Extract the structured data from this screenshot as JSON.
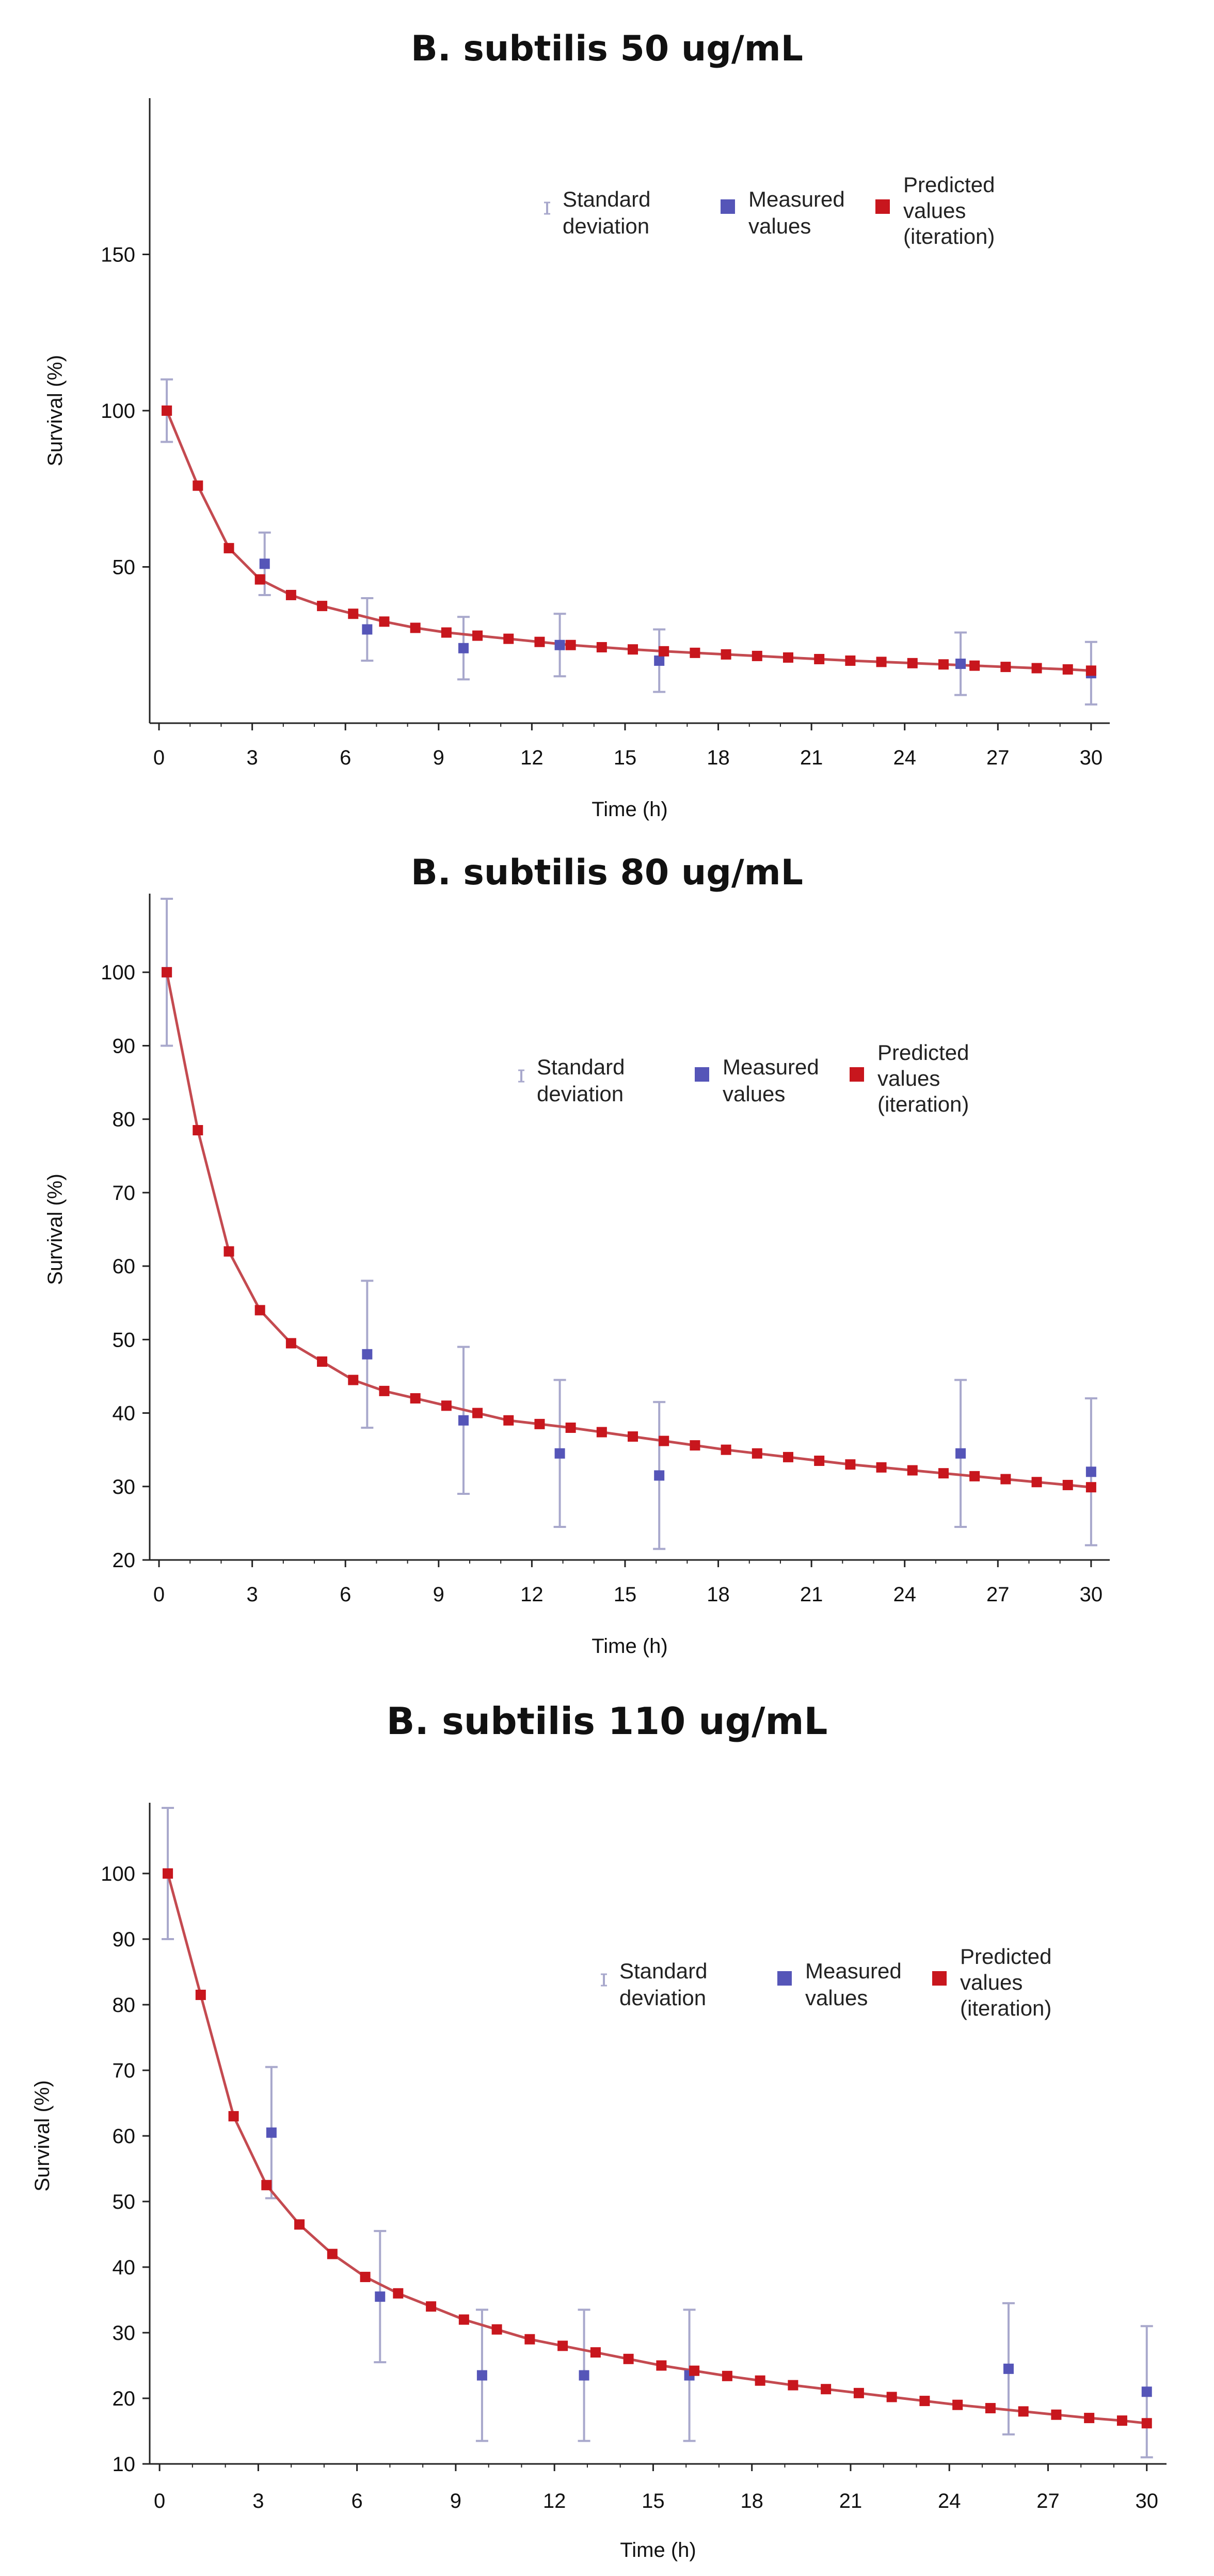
{
  "colors": {
    "measured": "#5555b8",
    "predicted": "#c8161d",
    "curve": "#c44a50",
    "errorbar": "#a8a8cc",
    "axis": "#222222"
  },
  "chart_data": [
    {
      "type": "scatter",
      "title": "B. subtilis 50 ug/mL",
      "xlabel": "Time (h)",
      "ylabel": "Survival (%)",
      "xlim": [
        -0.3,
        30.6
      ],
      "ylim": [
        0,
        200
      ],
      "xticks": [
        0,
        3,
        6,
        9,
        12,
        15,
        18,
        21,
        24,
        27,
        30
      ],
      "yticks": [
        50,
        100,
        150
      ],
      "legend": [
        "Standard deviation",
        "Measured values",
        "Predicted values (iteration)"
      ],
      "measured": [
        {
          "x": 0.25,
          "y": 100,
          "sd": 10
        },
        {
          "x": 3.4,
          "y": 51,
          "sd": 10
        },
        {
          "x": 6.7,
          "y": 30,
          "sd": 10
        },
        {
          "x": 9.8,
          "y": 24,
          "sd": 10
        },
        {
          "x": 12.9,
          "y": 25,
          "sd": 10
        },
        {
          "x": 16.1,
          "y": 20,
          "sd": 10
        },
        {
          "x": 25.8,
          "y": 19,
          "sd": 10
        },
        {
          "x": 30.0,
          "y": 16,
          "sd": 10
        }
      ],
      "predicted": {
        "x": [
          0.25,
          1.25,
          2.25,
          3.25,
          4.25,
          5.25,
          6.25,
          7.25,
          8.25,
          9.25,
          10.25,
          11.25,
          12.25,
          13.25,
          14.25,
          15.25,
          16.25,
          17.25,
          18.25,
          19.25,
          20.25,
          21.25,
          22.25,
          23.25,
          24.25,
          25.25,
          26.25,
          27.25,
          28.25,
          29.25,
          30.0
        ],
        "y": [
          100,
          76,
          56,
          46,
          41,
          37.5,
          35,
          32.5,
          30.5,
          29,
          28,
          27,
          26,
          25,
          24.3,
          23.6,
          23,
          22.5,
          22,
          21.5,
          21,
          20.5,
          20,
          19.6,
          19.2,
          18.8,
          18.4,
          18,
          17.6,
          17.2,
          16.8
        ]
      }
    },
    {
      "type": "scatter",
      "title": "B. subtilis 80 ug/mL",
      "xlabel": "Time (h)",
      "ylabel": "Survival (%)",
      "xlim": [
        -0.3,
        30.6
      ],
      "ylim": [
        20,
        110
      ],
      "xticks": [
        0,
        3,
        6,
        9,
        12,
        15,
        18,
        21,
        24,
        27,
        30
      ],
      "yticks": [
        20,
        30,
        40,
        50,
        60,
        70,
        80,
        90,
        100
      ],
      "legend": [
        "Standard deviation",
        "Measured values",
        "Predicted values (iteration)"
      ],
      "measured": [
        {
          "x": 0.25,
          "y": 100,
          "sd": 10
        },
        {
          "x": 6.7,
          "y": 48,
          "sd": 10
        },
        {
          "x": 9.8,
          "y": 39,
          "sd": 10
        },
        {
          "x": 12.9,
          "y": 34.5,
          "sd": 10
        },
        {
          "x": 16.1,
          "y": 31.5,
          "sd": 10
        },
        {
          "x": 25.8,
          "y": 34.5,
          "sd": 10
        },
        {
          "x": 30.0,
          "y": 32,
          "sd": 10
        }
      ],
      "predicted": {
        "x": [
          0.25,
          1.25,
          2.25,
          3.25,
          4.25,
          5.25,
          6.25,
          7.25,
          8.25,
          9.25,
          10.25,
          11.25,
          12.25,
          13.25,
          14.25,
          15.25,
          16.25,
          17.25,
          18.25,
          19.25,
          20.25,
          21.25,
          22.25,
          23.25,
          24.25,
          25.25,
          26.25,
          27.25,
          28.25,
          29.25,
          30.0
        ],
        "y": [
          100,
          78.5,
          62,
          54,
          49.5,
          47,
          44.5,
          43,
          42,
          41,
          40,
          39,
          38.5,
          38,
          37.4,
          36.8,
          36.2,
          35.6,
          35,
          34.5,
          34,
          33.5,
          33,
          32.6,
          32.2,
          31.8,
          31.4,
          31,
          30.6,
          30.2,
          29.9
        ]
      }
    },
    {
      "type": "scatter",
      "title": "B. subtilis 110 ug/mL",
      "xlabel": "Time (h)",
      "ylabel": "Survival (%)",
      "xlim": [
        -0.3,
        30.6
      ],
      "ylim": [
        10,
        110
      ],
      "xticks": [
        0,
        3,
        6,
        9,
        12,
        15,
        18,
        21,
        24,
        27,
        30
      ],
      "yticks": [
        10,
        20,
        30,
        40,
        50,
        60,
        70,
        80,
        90,
        100
      ],
      "legend": [
        "Standard deviation",
        "Measured values",
        "Predicted values (iteration)"
      ],
      "measured": [
        {
          "x": 0.25,
          "y": 100,
          "sd": 10
        },
        {
          "x": 3.4,
          "y": 60.5,
          "sd": 10
        },
        {
          "x": 6.7,
          "y": 35.5,
          "sd": 10
        },
        {
          "x": 9.8,
          "y": 23.5,
          "sd": 10
        },
        {
          "x": 12.9,
          "y": 23.5,
          "sd": 10
        },
        {
          "x": 16.1,
          "y": 23.5,
          "sd": 10
        },
        {
          "x": 25.8,
          "y": 24.5,
          "sd": 10
        },
        {
          "x": 30.0,
          "y": 21,
          "sd": 10
        }
      ],
      "predicted": {
        "x": [
          0.25,
          1.25,
          2.25,
          3.25,
          4.25,
          5.25,
          6.25,
          7.25,
          8.25,
          9.25,
          10.25,
          11.25,
          12.25,
          13.25,
          14.25,
          15.25,
          16.25,
          17.25,
          18.25,
          19.25,
          20.25,
          21.25,
          22.25,
          23.25,
          24.25,
          25.25,
          26.25,
          27.25,
          28.25,
          29.25,
          30.0
        ],
        "y": [
          100,
          81.5,
          63,
          52.5,
          46.5,
          42,
          38.5,
          36,
          34,
          32,
          30.5,
          29,
          28,
          27,
          26,
          25,
          24.2,
          23.4,
          22.7,
          22,
          21.4,
          20.8,
          20.2,
          19.6,
          19,
          18.5,
          18,
          17.5,
          17,
          16.6,
          16.2
        ]
      }
    }
  ]
}
